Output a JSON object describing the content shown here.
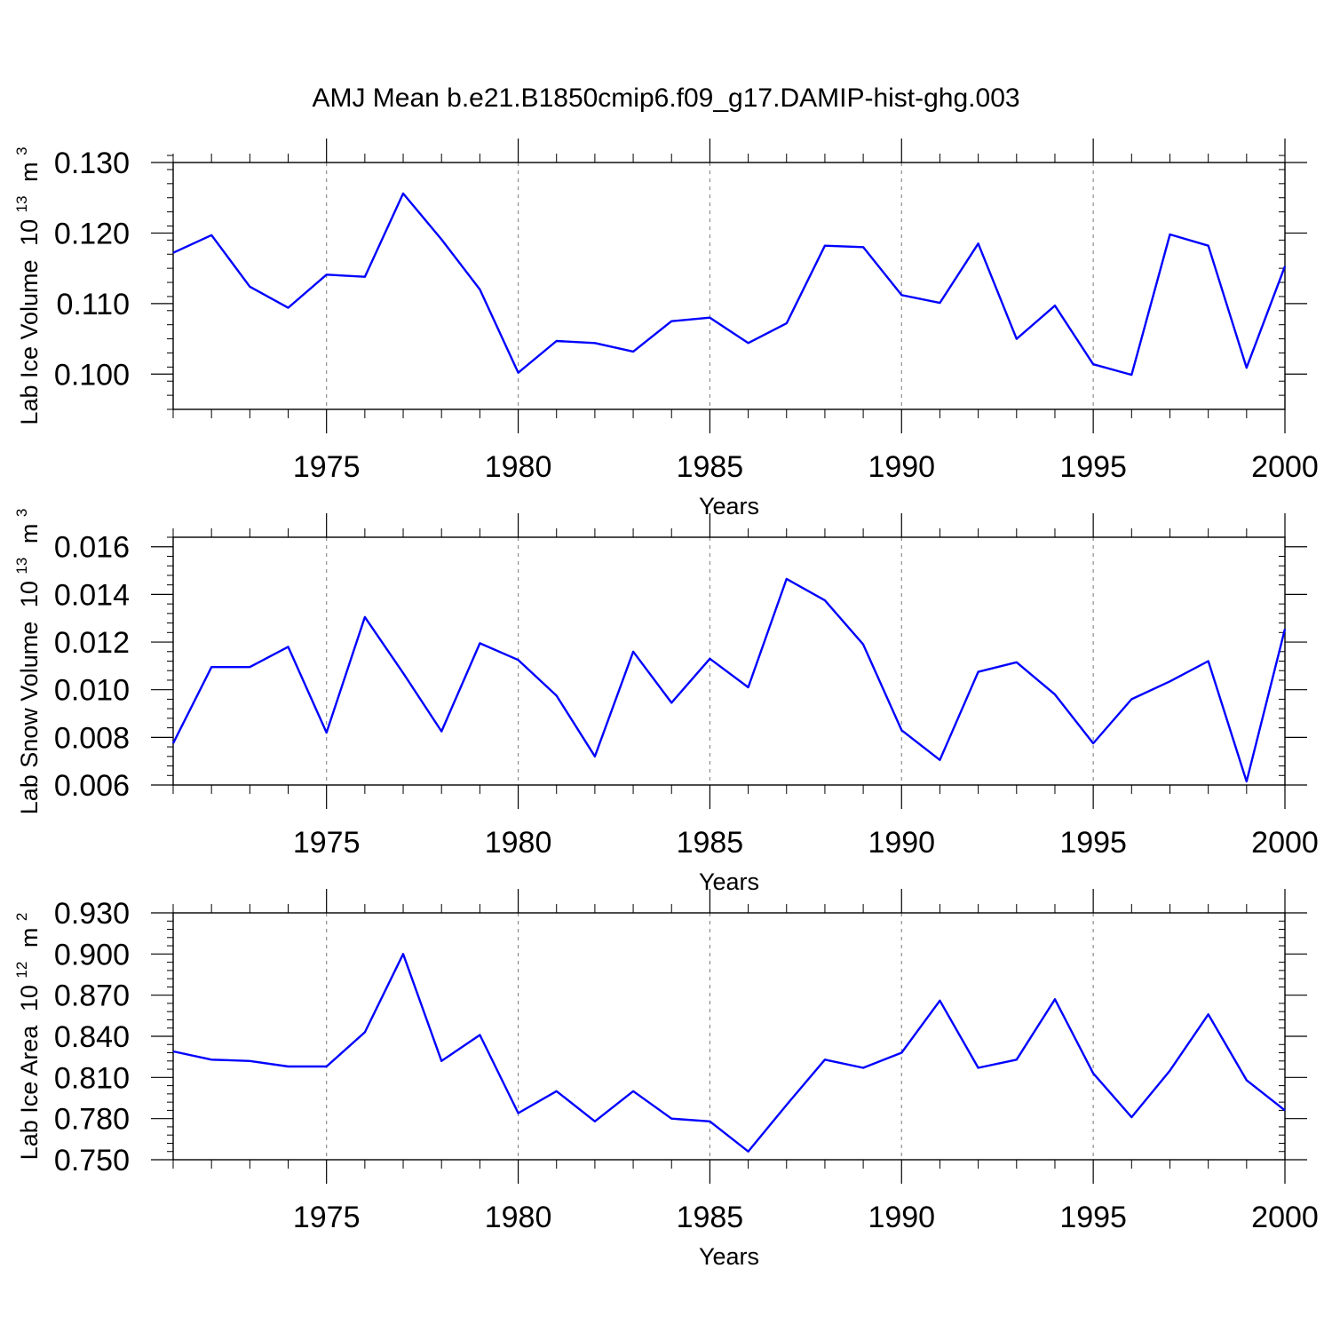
{
  "title": "AMJ Mean b.e21.B1850cmip6.f09_g17.DAMIP-hist-ghg.003",
  "colors": {
    "line": "#0000ff",
    "axis": "#000000",
    "grid": "#8c8c8c"
  },
  "chart_data": [
    {
      "type": "line",
      "ylabel": "Lab Ice Volume",
      "ylabel_unit_base": "10",
      "ylabel_unit_exp": "13",
      "ylabel_unit": "m",
      "ylabel_unit_exp2": "3",
      "xlabel": "Years",
      "xlim": [
        1971,
        2000
      ],
      "ylim": [
        0.095,
        0.13
      ],
      "yticks": [
        0.1,
        0.11,
        0.12,
        0.13
      ],
      "ytick_labels": [
        "0.100",
        "0.110",
        "0.120",
        "0.130"
      ],
      "yminor_step": 0.002,
      "xticks": [
        1975,
        1980,
        1985,
        1990,
        1995,
        2000
      ],
      "xtick_labels": [
        "1975",
        "1980",
        "1985",
        "1990",
        "1995",
        "2000"
      ],
      "x": [
        1971,
        1972,
        1973,
        1974,
        1975,
        1976,
        1977,
        1978,
        1979,
        1980,
        1981,
        1982,
        1983,
        1984,
        1985,
        1986,
        1987,
        1988,
        1989,
        1990,
        1991,
        1992,
        1993,
        1994,
        1995,
        1996,
        1997,
        1998,
        1999,
        2000
      ],
      "series": [
        {
          "name": "Lab Ice Volume",
          "values": [
            0.1172,
            0.1197,
            0.1124,
            0.1094,
            0.1141,
            0.1138,
            0.1256,
            0.1191,
            0.112,
            0.1002,
            0.1047,
            0.1044,
            0.1032,
            0.1075,
            0.108,
            0.1044,
            0.1072,
            0.1182,
            0.118,
            0.1112,
            0.1101,
            0.1185,
            0.105,
            0.1097,
            0.1014,
            0.0999,
            0.1198,
            0.1182,
            0.1009,
            0.1153
          ]
        }
      ]
    },
    {
      "type": "line",
      "ylabel": "Lab Snow Volume",
      "ylabel_unit_base": "10",
      "ylabel_unit_exp": "13",
      "ylabel_unit": "m",
      "ylabel_unit_exp2": "3",
      "xlabel": "Years",
      "xlim": [
        1971,
        2000
      ],
      "ylim": [
        0.006,
        0.0164
      ],
      "yticks": [
        0.006,
        0.008,
        0.01,
        0.012,
        0.014,
        0.016
      ],
      "ytick_labels": [
        "0.006",
        "0.008",
        "0.010",
        "0.012",
        "0.014",
        "0.016"
      ],
      "yminor_step": 0.0004,
      "xticks": [
        1975,
        1980,
        1985,
        1990,
        1995,
        2000
      ],
      "xtick_labels": [
        "1975",
        "1980",
        "1985",
        "1990",
        "1995",
        "2000"
      ],
      "x": [
        1971,
        1972,
        1973,
        1974,
        1975,
        1976,
        1977,
        1978,
        1979,
        1980,
        1981,
        1982,
        1983,
        1984,
        1985,
        1986,
        1987,
        1988,
        1989,
        1990,
        1991,
        1992,
        1993,
        1994,
        1995,
        1996,
        1997,
        1998,
        1999,
        2000
      ],
      "series": [
        {
          "name": "Lab Snow Volume",
          "values": [
            0.00775,
            0.01095,
            0.01095,
            0.0118,
            0.0082,
            0.01305,
            0.0107,
            0.00825,
            0.01195,
            0.01125,
            0.00975,
            0.0072,
            0.0116,
            0.00945,
            0.0113,
            0.0101,
            0.01465,
            0.01375,
            0.0119,
            0.0083,
            0.00705,
            0.01075,
            0.01115,
            0.0098,
            0.00775,
            0.0096,
            0.01035,
            0.0112,
            0.00615,
            0.01255
          ]
        }
      ]
    },
    {
      "type": "line",
      "ylabel": "Lab Ice Area",
      "ylabel_unit_base": "10",
      "ylabel_unit_exp": "12",
      "ylabel_unit": "m",
      "ylabel_unit_exp2": "2",
      "xlabel": "Years",
      "xlim": [
        1971,
        2000
      ],
      "ylim": [
        0.75,
        0.93
      ],
      "yticks": [
        0.75,
        0.78,
        0.81,
        0.84,
        0.87,
        0.9,
        0.93
      ],
      "ytick_labels": [
        "0.750",
        "0.780",
        "0.810",
        "0.840",
        "0.870",
        "0.900",
        "0.930"
      ],
      "yminor_step": 0.006,
      "xticks": [
        1975,
        1980,
        1985,
        1990,
        1995,
        2000
      ],
      "xtick_labels": [
        "1975",
        "1980",
        "1985",
        "1990",
        "1995",
        "2000"
      ],
      "x": [
        1971,
        1972,
        1973,
        1974,
        1975,
        1976,
        1977,
        1978,
        1979,
        1980,
        1981,
        1982,
        1983,
        1984,
        1985,
        1986,
        1987,
        1988,
        1989,
        1990,
        1991,
        1992,
        1993,
        1994,
        1995,
        1996,
        1997,
        1998,
        1999,
        2000
      ],
      "series": [
        {
          "name": "Lab Ice Area",
          "values": [
            0.829,
            0.823,
            0.822,
            0.818,
            0.818,
            0.843,
            0.9,
            0.822,
            0.841,
            0.784,
            0.8,
            0.778,
            0.8,
            0.78,
            0.778,
            0.756,
            0.79,
            0.823,
            0.817,
            0.828,
            0.866,
            0.817,
            0.823,
            0.867,
            0.813,
            0.781,
            0.815,
            0.856,
            0.808,
            0.786
          ]
        }
      ]
    }
  ]
}
